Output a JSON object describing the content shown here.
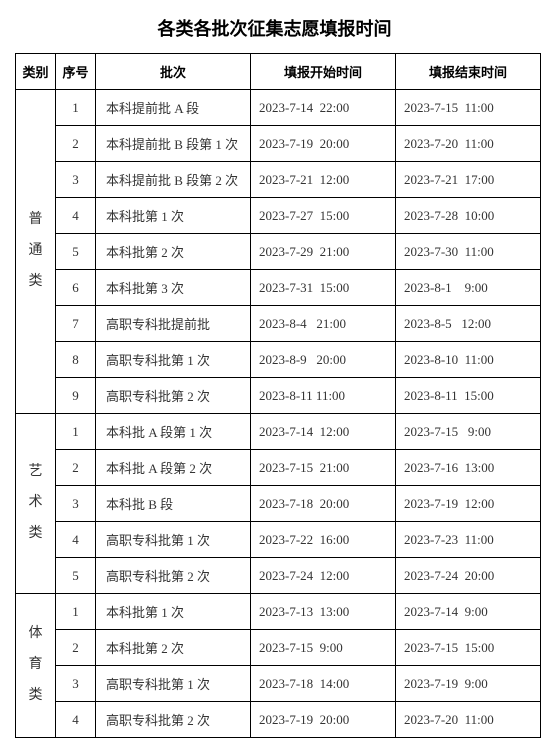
{
  "title": "各类各批次征集志愿填报时间",
  "headers": {
    "category": "类别",
    "index": "序号",
    "batch": "批次",
    "start": "填报开始时间",
    "end": "填报结束时间"
  },
  "groups": [
    {
      "category": "普通类",
      "category_vertical": "普\n通\n类",
      "rows": [
        {
          "idx": "1",
          "batch": "本科提前批 A 段",
          "start": "2023-7-14  22:00",
          "end": "2023-7-15  11:00"
        },
        {
          "idx": "2",
          "batch": "本科提前批 B 段第 1 次",
          "start": "2023-7-19  20:00",
          "end": "2023-7-20  11:00"
        },
        {
          "idx": "3",
          "batch": "本科提前批 B 段第 2 次",
          "start": "2023-7-21  12:00",
          "end": "2023-7-21  17:00"
        },
        {
          "idx": "4",
          "batch": "本科批第 1 次",
          "start": "2023-7-27  15:00",
          "end": "2023-7-28  10:00"
        },
        {
          "idx": "5",
          "batch": "本科批第 2 次",
          "start": "2023-7-29  21:00",
          "end": "2023-7-30  11:00"
        },
        {
          "idx": "6",
          "batch": "本科批第 3 次",
          "start": "2023-7-31  15:00",
          "end": "2023-8-1    9:00"
        },
        {
          "idx": "7",
          "batch": "高职专科批提前批",
          "start": "2023-8-4   21:00",
          "end": "2023-8-5   12:00"
        },
        {
          "idx": "8",
          "batch": "高职专科批第 1 次",
          "start": "2023-8-9   20:00",
          "end": "2023-8-10  11:00"
        },
        {
          "idx": "9",
          "batch": "高职专科批第 2 次",
          "start": "2023-8-11 11:00",
          "end": "2023-8-11  15:00"
        }
      ]
    },
    {
      "category": "艺术类",
      "category_vertical": "艺\n术\n类",
      "rows": [
        {
          "idx": "1",
          "batch": "本科批 A 段第 1 次",
          "start": "2023-7-14  12:00",
          "end": "2023-7-15   9:00"
        },
        {
          "idx": "2",
          "batch": "本科批 A 段第 2 次",
          "start": "2023-7-15  21:00",
          "end": "2023-7-16  13:00"
        },
        {
          "idx": "3",
          "batch": "本科批 B 段",
          "start": "2023-7-18  20:00",
          "end": "2023-7-19  12:00"
        },
        {
          "idx": "4",
          "batch": "高职专科批第 1 次",
          "start": "2023-7-22  16:00",
          "end": "2023-7-23  11:00"
        },
        {
          "idx": "5",
          "batch": "高职专科批第 2 次",
          "start": "2023-7-24  12:00",
          "end": "2023-7-24  20:00"
        }
      ]
    },
    {
      "category": "体育类",
      "category_vertical": "体\n育\n类",
      "rows": [
        {
          "idx": "1",
          "batch": "本科批第 1 次",
          "start": "2023-7-13  13:00",
          "end": "2023-7-14  9:00"
        },
        {
          "idx": "2",
          "batch": "本科批第 2 次",
          "start": "2023-7-15  9:00",
          "end": "2023-7-15  15:00"
        },
        {
          "idx": "3",
          "batch": "高职专科批第 1 次",
          "start": "2023-7-18  14:00",
          "end": "2023-7-19  9:00"
        },
        {
          "idx": "4",
          "batch": "高职专科批第 2 次",
          "start": "2023-7-19  20:00",
          "end": "2023-7-20  11:00"
        }
      ]
    }
  ]
}
